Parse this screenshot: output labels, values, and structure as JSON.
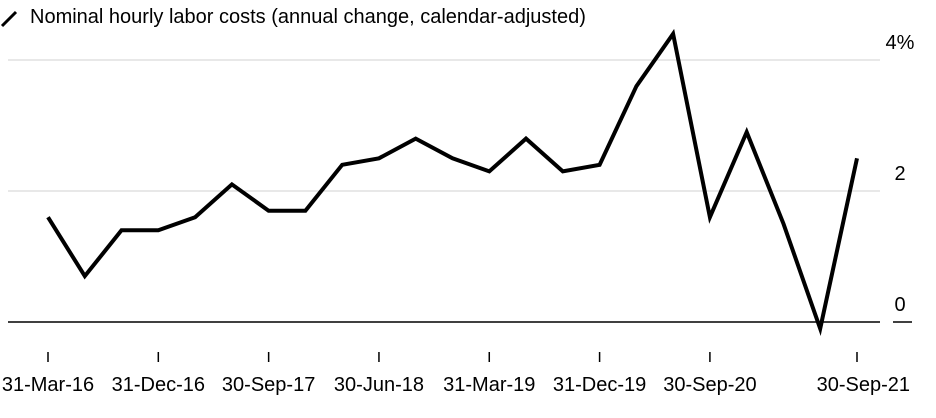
{
  "chart_data": {
    "type": "line",
    "legend": [
      {
        "name": "Nominal hourly labor costs (annual change, calendar-adjusted)",
        "color": "#000000"
      }
    ],
    "x": [
      "31-Mar-16",
      "30-Jun-16",
      "30-Sep-16",
      "31-Dec-16",
      "31-Mar-17",
      "30-Jun-17",
      "30-Sep-17",
      "31-Dec-17",
      "31-Mar-18",
      "30-Jun-18",
      "30-Sep-18",
      "31-Dec-18",
      "31-Mar-19",
      "30-Jun-19",
      "30-Sep-19",
      "31-Dec-19",
      "31-Mar-20",
      "30-Jun-20",
      "30-Sep-20",
      "31-Dec-20",
      "31-Mar-21",
      "30-Jun-21",
      "30-Sep-21"
    ],
    "series": [
      {
        "name": "Nominal hourly labor costs (annual change, calendar-adjusted)",
        "color": "#000000",
        "values": [
          1.6,
          0.7,
          1.4,
          1.4,
          1.6,
          2.1,
          1.7,
          1.7,
          2.4,
          2.5,
          2.8,
          2.5,
          2.3,
          2.8,
          2.3,
          2.4,
          3.6,
          4.4,
          1.6,
          2.9,
          1.5,
          -0.1,
          2.5
        ]
      }
    ],
    "xticks": [
      "31-Mar-16",
      "31-Dec-16",
      "30-Sep-17",
      "30-Jun-18",
      "31-Mar-19",
      "31-Dec-19",
      "30-Sep-20",
      "30-Sep-21"
    ],
    "yticks": [
      {
        "value": 4,
        "label": "4%"
      },
      {
        "value": 2,
        "label": "2"
      },
      {
        "value": 0,
        "label": "0"
      }
    ],
    "ylim": [
      -0.3,
      4.6
    ],
    "grid": true
  }
}
